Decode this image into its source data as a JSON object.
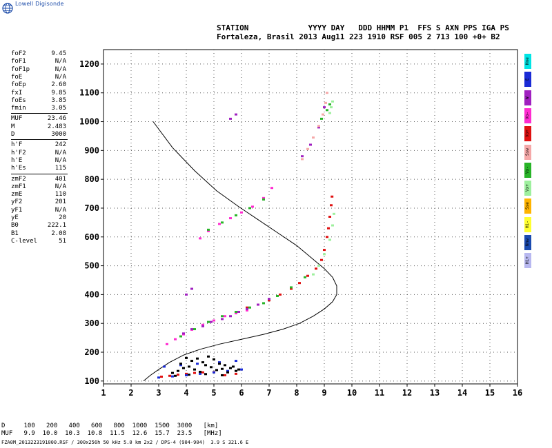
{
  "logo": {
    "text": "Lowell Digisonde",
    "icon": "globe-icon"
  },
  "header": {
    "line1": "STATION             YYYY DAY   DDD HHMM P1  FFS S AXN PPS IGA PS",
    "line2": "Fortaleza, Brasil 2013 Aug11 223 1910 RSF 005 2 713 100 +0+ B2"
  },
  "panel": {
    "group1": [
      {
        "name": "foF2",
        "value": "9.45"
      },
      {
        "name": "foF1",
        "value": "N/A"
      },
      {
        "name": "foF1p",
        "value": "N/A"
      },
      {
        "name": "foE",
        "value": "N/A"
      },
      {
        "name": "foEp",
        "value": "2.60"
      },
      {
        "name": "fxI",
        "value": "9.85"
      },
      {
        "name": "foEs",
        "value": "3.85"
      },
      {
        "name": "fmin",
        "value": "3.05"
      }
    ],
    "group2": [
      {
        "name": "MUF",
        "value": "23.46"
      },
      {
        "name": "M",
        "value": "2.483"
      },
      {
        "name": "D",
        "value": "3000"
      }
    ],
    "group3": [
      {
        "name": "h'F",
        "value": "242"
      },
      {
        "name": "h'F2",
        "value": "N/A"
      },
      {
        "name": "h'E",
        "value": "N/A"
      },
      {
        "name": "h'Es",
        "value": "115"
      }
    ],
    "group4": [
      {
        "name": "zmF2",
        "value": "401"
      },
      {
        "name": "zmF1",
        "value": "N/A"
      },
      {
        "name": "zmE",
        "value": "110"
      },
      {
        "name": "yF2",
        "value": "201"
      },
      {
        "name": "yF1",
        "value": "N/A"
      },
      {
        "name": "yE",
        "value": "20"
      },
      {
        "name": "B0",
        "value": "222.1"
      },
      {
        "name": "B1",
        "value": "2.08"
      },
      {
        "name": "C-level",
        "value": "51"
      }
    ]
  },
  "legend": [
    {
      "label": "Nne",
      "color": "#00e5e5"
    },
    {
      "label": "E",
      "color": "#1a2bd6"
    },
    {
      "label": "W",
      "color": "#a020c0"
    },
    {
      "label": "Vo-",
      "color": "#ff2bd0"
    },
    {
      "label": "Vo+",
      "color": "#e01010"
    },
    {
      "label": "Ssw",
      "color": "#f5a8a8"
    },
    {
      "label": "Vx-",
      "color": "#28b428"
    },
    {
      "label": "Vx+",
      "color": "#9ef09e"
    },
    {
      "label": "Sse",
      "color": "#ffb400"
    },
    {
      "label": "Hi-",
      "color": "#ffff30"
    },
    {
      "label": "Nnw",
      "color": "#1a4ab0"
    },
    {
      "label": "Hi+",
      "color": "#b8b8f0"
    }
  ],
  "footer": {
    "line1": "D     100   200   400   600   800  1000  1500  3000   [km]",
    "line2": "MUF   9.9  10.0  10.3  10.8  11.5  12.6  15.7  23.5   [MHz]",
    "line3": "FZA0M_2013223191000.RSF / 300x256h 50 kHz 5.0 km 2x2 / DPS-4 (904-904)  3.9 S 321.6 E"
  },
  "chart_data": {
    "type": "scatter",
    "xlim": [
      1,
      16
    ],
    "ylim": [
      90,
      1250
    ],
    "xticks": [
      "1",
      "2",
      "3",
      "4",
      "5",
      "6",
      "7",
      "8",
      "9",
      "10",
      "11",
      "12",
      "13",
      "14",
      "15",
      "16"
    ],
    "yticks": [
      "100",
      "200",
      "300",
      "400",
      "500",
      "600",
      "700",
      "800",
      "900",
      "1000",
      "1100",
      "1200"
    ],
    "grid": true,
    "series": [
      {
        "name": "Vo+",
        "color": "#e01010",
        "x": [
          3.1,
          3.4,
          3.7,
          4.0,
          4.3,
          4.6,
          5.0,
          5.4,
          5.8,
          6.2,
          6.6,
          7.0,
          7.4,
          7.8,
          8.1,
          8.4,
          8.7,
          8.9,
          9.0,
          9.1,
          9.15,
          9.2,
          9.25,
          9.28
        ],
        "y": [
          115,
          118,
          122,
          125,
          128,
          130,
          131,
          120,
          125,
          355,
          365,
          380,
          400,
          420,
          440,
          465,
          490,
          520,
          555,
          600,
          630,
          670,
          710,
          740
        ]
      },
      {
        "name": "Vo-",
        "color": "#ff2bd0",
        "x": [
          3.3,
          3.6,
          3.9,
          4.2,
          4.6,
          5.0,
          5.4,
          5.8,
          6.2,
          4.5,
          4.8,
          5.2,
          5.6,
          6.0,
          6.4,
          6.8,
          7.1
        ],
        "y": [
          228,
          245,
          262,
          278,
          295,
          310,
          325,
          335,
          345,
          595,
          620,
          645,
          665,
          685,
          705,
          735,
          770
        ]
      },
      {
        "name": "Vx-",
        "color": "#28b428",
        "x": [
          3.8,
          4.3,
          4.8,
          5.3,
          5.8,
          6.3,
          6.8,
          7.3,
          7.8,
          8.3,
          4.8,
          5.3,
          5.8,
          6.3,
          6.8,
          8.9,
          9.1,
          9.2
        ],
        "y": [
          255,
          280,
          305,
          325,
          340,
          355,
          370,
          395,
          425,
          460,
          625,
          650,
          675,
          700,
          730,
          1010,
          1040,
          1060
        ]
      },
      {
        "name": "Vx+",
        "color": "#9ef09e",
        "x": [
          8.6,
          8.8,
          9.0,
          9.2,
          9.3,
          9.35,
          9.2,
          9.25,
          9.3
        ],
        "y": [
          470,
          500,
          540,
          590,
          640,
          680,
          1030,
          1050,
          1070
        ]
      },
      {
        "name": "E",
        "color": "#1a2bd6",
        "x": [
          3.0,
          3.5,
          4.0,
          4.5,
          5.0,
          5.5,
          6.0,
          3.2,
          3.8,
          4.4,
          5.2,
          5.8
        ],
        "y": [
          112,
          116,
          120,
          125,
          130,
          135,
          140,
          150,
          155,
          160,
          165,
          170
        ]
      },
      {
        "name": "W",
        "color": "#a020c0",
        "x": [
          3.9,
          4.2,
          4.6,
          4.9,
          5.3,
          5.6,
          5.9,
          6.2,
          6.6,
          7.0,
          8.2,
          8.5,
          8.8,
          9.0,
          4.0,
          4.2,
          5.6,
          5.8
        ],
        "y": [
          265,
          280,
          290,
          305,
          315,
          325,
          340,
          350,
          365,
          385,
          880,
          920,
          980,
          1050,
          400,
          420,
          1010,
          1025
        ]
      },
      {
        "name": "Ssw",
        "color": "#f5a8a8",
        "x": [
          8.2,
          8.4,
          8.6,
          8.8,
          8.95,
          9.05,
          9.1
        ],
        "y": [
          870,
          905,
          945,
          985,
          1025,
          1065,
          1100
        ]
      },
      {
        "name": "Nne",
        "color": "#000000",
        "x": [
          3.5,
          3.7,
          3.9,
          4.1,
          4.3,
          4.5,
          4.7,
          4.9,
          5.1,
          5.3,
          5.5,
          5.7,
          5.9,
          3.8,
          4.2,
          4.6,
          5.0,
          5.4,
          4.0,
          4.4,
          4.8,
          5.2,
          5.6,
          3.6,
          4.1,
          4.7,
          5.3,
          5.8
        ],
        "y": [
          128,
          135,
          145,
          150,
          140,
          132,
          155,
          148,
          138,
          142,
          130,
          150,
          140,
          160,
          170,
          165,
          175,
          155,
          180,
          178,
          185,
          160,
          145,
          118,
          122,
          124,
          120,
          135
        ]
      }
    ],
    "profile": {
      "name": "true height profile",
      "x": [
        2.45,
        2.7,
        3.0,
        3.4,
        3.9,
        4.5,
        5.2,
        6.0,
        6.8,
        7.5,
        8.1,
        8.6,
        9.0,
        9.3,
        9.45,
        9.45,
        9.3,
        9.0,
        8.5,
        8.0,
        7.3,
        6.6,
        5.9,
        5.1,
        4.3,
        3.5,
        2.8
      ],
      "y": [
        100,
        120,
        140,
        165,
        190,
        210,
        228,
        245,
        262,
        280,
        300,
        325,
        350,
        375,
        400,
        430,
        460,
        490,
        530,
        570,
        615,
        660,
        705,
        760,
        830,
        910,
        1000
      ]
    }
  }
}
